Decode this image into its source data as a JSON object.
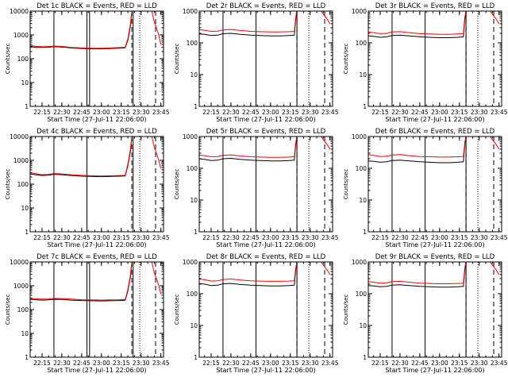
{
  "figure": {
    "colors": {
      "events": "#000000",
      "lld": "#ff0000",
      "axes": "#000000"
    },
    "xlabel": "Start Time (27-Jul-11 22:06:00)",
    "ylabel": "Counts/sec",
    "xtick_labels": [
      "22:15",
      "22:30",
      "22:45",
      "23:00",
      "23:15",
      "23:30",
      "23:45"
    ]
  },
  "chart_data": [
    {
      "type": "line",
      "title": "Det 1c BLACK = Events, RED = LLD",
      "y_scale": "log",
      "ylim": [
        1,
        10000
      ],
      "ytick_labels": [
        "1",
        "10",
        "100",
        "1000",
        "10000"
      ],
      "xlim": [
        "22:06",
        "23:47"
      ],
      "solid_vlines": [
        "22:24",
        "22:49",
        "22:51",
        "23:24"
      ],
      "dashed_vlines": [
        "23:23",
        "23:41"
      ],
      "dotted_vlines": [
        "23:29"
      ],
      "series": [
        {
          "name": "BLACK = Events",
          "color": "#000000",
          "x": [
            "22:06",
            "22:10",
            "22:15",
            "22:20",
            "22:24",
            "22:30",
            "22:37",
            "22:45",
            "22:52",
            "23:00",
            "23:07",
            "23:14",
            "23:18",
            "23:20",
            "23:22",
            "23:23"
          ],
          "y": [
            330,
            300,
            300,
            305,
            320,
            310,
            285,
            270,
            262,
            260,
            270,
            280,
            290,
            600,
            2500,
            9000
          ]
        },
        {
          "name": "RED = LLD",
          "color": "#ff0000",
          "x": [
            "22:06",
            "22:10",
            "22:15",
            "22:20",
            "22:24",
            "22:30",
            "22:37",
            "22:45",
            "22:52",
            "23:00",
            "23:07",
            "23:14",
            "23:18",
            "23:20",
            "23:22",
            "23:23",
            "23:38",
            "23:40",
            "23:43",
            "23:45"
          ],
          "y": [
            360,
            330,
            320,
            325,
            340,
            330,
            300,
            285,
            275,
            275,
            285,
            295,
            305,
            700,
            3000,
            11000,
            11000,
            3500,
            1200,
            400
          ]
        }
      ]
    },
    {
      "type": "line",
      "title": "Det 2r BLACK = Events, RED = LLD",
      "y_scale": "log",
      "ylim": [
        1,
        1000
      ],
      "ytick_labels": [
        "1",
        "10",
        "100",
        "1000"
      ],
      "xlim": [
        "22:06",
        "23:47"
      ],
      "solid_vlines": [
        "22:24",
        "22:49",
        "23:20"
      ],
      "dashed_vlines": [
        "23:20",
        "23:41"
      ],
      "dotted_vlines": [
        "23:29"
      ],
      "series": [
        {
          "name": "BLACK = Events",
          "color": "#000000",
          "x": [
            "22:06",
            "22:10",
            "22:15",
            "22:20",
            "22:24",
            "22:30",
            "22:37",
            "22:45",
            "22:52",
            "23:00",
            "23:07",
            "23:14",
            "23:18",
            "23:19",
            "23:20"
          ],
          "y": [
            190,
            185,
            170,
            175,
            195,
            200,
            185,
            175,
            170,
            165,
            165,
            170,
            175,
            500,
            1100
          ]
        },
        {
          "name": "RED = LLD",
          "color": "#ff0000",
          "x": [
            "22:06",
            "22:10",
            "22:15",
            "22:20",
            "22:24",
            "22:30",
            "22:37",
            "22:45",
            "22:52",
            "23:00",
            "23:07",
            "23:14",
            "23:18",
            "23:19",
            "23:20",
            "23:38",
            "23:40",
            "23:43",
            "23:45"
          ],
          "y": [
            260,
            250,
            230,
            235,
            255,
            265,
            245,
            230,
            225,
            220,
            220,
            225,
            230,
            600,
            1100,
            1100,
            800,
            550,
            400
          ]
        }
      ]
    },
    {
      "type": "line",
      "title": "Det 3r BLACK = Events, RED = LLD",
      "y_scale": "log",
      "ylim": [
        1,
        1000
      ],
      "ytick_labels": [
        "1",
        "10",
        "100",
        "1000"
      ],
      "xlim": [
        "22:06",
        "23:47"
      ],
      "solid_vlines": [
        "22:24",
        "22:49",
        "23:20"
      ],
      "dashed_vlines": [
        "23:20",
        "23:41"
      ],
      "dotted_vlines": [
        "23:29"
      ],
      "series": [
        {
          "name": "BLACK = Events",
          "color": "#000000",
          "x": [
            "22:06",
            "22:10",
            "22:15",
            "22:20",
            "22:24",
            "22:30",
            "22:37",
            "22:45",
            "22:52",
            "23:00",
            "23:07",
            "23:14",
            "23:18",
            "23:19",
            "23:20"
          ],
          "y": [
            165,
            160,
            150,
            155,
            170,
            175,
            165,
            155,
            150,
            145,
            145,
            150,
            155,
            500,
            1100
          ]
        },
        {
          "name": "RED = LLD",
          "color": "#ff0000",
          "x": [
            "22:06",
            "22:10",
            "22:15",
            "22:20",
            "22:24",
            "22:30",
            "22:37",
            "22:45",
            "22:52",
            "23:00",
            "23:07",
            "23:14",
            "23:18",
            "23:19",
            "23:20",
            "23:38",
            "23:40",
            "23:43",
            "23:45"
          ],
          "y": [
            220,
            210,
            195,
            200,
            220,
            225,
            210,
            195,
            190,
            185,
            185,
            190,
            195,
            600,
            1100,
            1100,
            800,
            550,
            400
          ]
        }
      ]
    },
    {
      "type": "line",
      "title": "Det 4c BLACK = Events, RED = LLD",
      "y_scale": "log",
      "ylim": [
        1,
        10000
      ],
      "ytick_labels": [
        "1",
        "10",
        "100",
        "1000",
        "10000"
      ],
      "xlim": [
        "22:06",
        "23:47"
      ],
      "solid_vlines": [
        "22:24",
        "22:49",
        "23:24"
      ],
      "dashed_vlines": [
        "23:23",
        "23:41"
      ],
      "dotted_vlines": [
        "23:29"
      ],
      "series": [
        {
          "name": "BLACK = Events",
          "color": "#000000",
          "x": [
            "22:06",
            "22:10",
            "22:15",
            "22:20",
            "22:24",
            "22:30",
            "22:37",
            "22:45",
            "22:52",
            "23:00",
            "23:07",
            "23:14",
            "23:18",
            "23:20",
            "23:22",
            "23:23"
          ],
          "y": [
            270,
            250,
            230,
            240,
            260,
            250,
            230,
            215,
            210,
            205,
            210,
            215,
            220,
            600,
            2500,
            9000
          ]
        },
        {
          "name": "RED = LLD",
          "color": "#ff0000",
          "x": [
            "22:06",
            "22:10",
            "22:15",
            "22:20",
            "22:24",
            "22:30",
            "22:37",
            "22:45",
            "22:52",
            "23:00",
            "23:07",
            "23:14",
            "23:18",
            "23:20",
            "23:22",
            "23:23",
            "23:38",
            "23:40",
            "23:43",
            "23:45"
          ],
          "y": [
            300,
            275,
            250,
            260,
            280,
            270,
            250,
            235,
            225,
            220,
            225,
            230,
            235,
            700,
            3000,
            11000,
            11000,
            3500,
            1200,
            450
          ]
        }
      ]
    },
    {
      "type": "line",
      "title": "Det 5r BLACK = Events, RED = LLD",
      "y_scale": "log",
      "ylim": [
        1,
        1000
      ],
      "ytick_labels": [
        "1",
        "10",
        "100",
        "1000"
      ],
      "xlim": [
        "22:06",
        "23:47"
      ],
      "solid_vlines": [
        "22:24",
        "22:49",
        "23:20"
      ],
      "dashed_vlines": [
        "23:20",
        "23:41"
      ],
      "dotted_vlines": [
        "23:29"
      ],
      "series": [
        {
          "name": "BLACK = Events",
          "color": "#000000",
          "x": [
            "22:06",
            "22:10",
            "22:15",
            "22:20",
            "22:24",
            "22:30",
            "22:37",
            "22:45",
            "22:52",
            "23:00",
            "23:07",
            "23:14",
            "23:18",
            "23:19",
            "23:20"
          ],
          "y": [
            200,
            190,
            175,
            180,
            200,
            205,
            190,
            180,
            175,
            170,
            170,
            175,
            180,
            500,
            1100
          ]
        },
        {
          "name": "RED = LLD",
          "color": "#ff0000",
          "x": [
            "22:06",
            "22:10",
            "22:15",
            "22:20",
            "22:24",
            "22:30",
            "22:37",
            "22:45",
            "22:52",
            "23:00",
            "23:07",
            "23:14",
            "23:18",
            "23:19",
            "23:20",
            "23:38",
            "23:40",
            "23:43",
            "23:45"
          ],
          "y": [
            260,
            250,
            230,
            235,
            255,
            265,
            245,
            230,
            225,
            220,
            220,
            225,
            230,
            600,
            1100,
            1100,
            800,
            550,
            400
          ]
        }
      ]
    },
    {
      "type": "line",
      "title": "Det 6r BLACK = Events, RED = LLD",
      "y_scale": "log",
      "ylim": [
        1,
        1000
      ],
      "ytick_labels": [
        "1",
        "10",
        "100",
        "1000"
      ],
      "xlim": [
        "22:06",
        "23:47"
      ],
      "solid_vlines": [
        "22:24",
        "22:49",
        "23:20"
      ],
      "dashed_vlines": [
        "23:20",
        "23:41"
      ],
      "dotted_vlines": [
        "23:29"
      ],
      "series": [
        {
          "name": "BLACK = Events",
          "color": "#000000",
          "x": [
            "22:06",
            "22:10",
            "22:15",
            "22:20",
            "22:24",
            "22:30",
            "22:37",
            "22:45",
            "22:52",
            "23:00",
            "23:07",
            "23:14",
            "23:18",
            "23:19",
            "23:20"
          ],
          "y": [
            170,
            165,
            155,
            160,
            175,
            180,
            170,
            160,
            155,
            150,
            150,
            155,
            160,
            500,
            1100
          ]
        },
        {
          "name": "RED = LLD",
          "color": "#ff0000",
          "x": [
            "22:06",
            "22:10",
            "22:15",
            "22:20",
            "22:24",
            "22:30",
            "22:37",
            "22:45",
            "22:52",
            "23:00",
            "23:07",
            "23:14",
            "23:18",
            "23:19",
            "23:20",
            "23:38",
            "23:40",
            "23:43",
            "23:45"
          ],
          "y": [
            270,
            255,
            235,
            240,
            260,
            270,
            250,
            235,
            230,
            225,
            225,
            230,
            235,
            600,
            1100,
            1100,
            800,
            550,
            400
          ]
        }
      ]
    },
    {
      "type": "line",
      "title": "Det 7c BLACK = Events, RED = LLD",
      "y_scale": "log",
      "ylim": [
        1,
        10000
      ],
      "ytick_labels": [
        "1",
        "10",
        "100",
        "1000",
        "10000"
      ],
      "xlim": [
        "22:06",
        "23:47"
      ],
      "solid_vlines": [
        "22:24",
        "22:49",
        "22:51",
        "23:24"
      ],
      "dashed_vlines": [
        "23:23",
        "23:41"
      ],
      "dotted_vlines": [
        "23:29"
      ],
      "series": [
        {
          "name": "BLACK = Events",
          "color": "#000000",
          "x": [
            "22:06",
            "22:10",
            "22:15",
            "22:20",
            "22:24",
            "22:30",
            "22:37",
            "22:45",
            "22:52",
            "23:00",
            "23:07",
            "23:14",
            "23:18",
            "23:20",
            "23:22",
            "23:23"
          ],
          "y": [
            270,
            260,
            250,
            255,
            270,
            265,
            250,
            240,
            235,
            230,
            235,
            240,
            245,
            600,
            2500,
            9000
          ]
        },
        {
          "name": "RED = LLD",
          "color": "#ff0000",
          "x": [
            "22:06",
            "22:10",
            "22:15",
            "22:20",
            "22:24",
            "22:30",
            "22:37",
            "22:45",
            "22:52",
            "23:00",
            "23:07",
            "23:14",
            "23:18",
            "23:20",
            "23:22",
            "23:23",
            "23:38",
            "23:40",
            "23:43",
            "23:45"
          ],
          "y": [
            300,
            285,
            275,
            280,
            295,
            290,
            275,
            260,
            255,
            250,
            255,
            260,
            265,
            700,
            3000,
            11000,
            11000,
            3500,
            1200,
            450
          ]
        }
      ]
    },
    {
      "type": "line",
      "title": "Det 8r BLACK = Events, RED = LLD",
      "y_scale": "log",
      "ylim": [
        1,
        1000
      ],
      "ytick_labels": [
        "1",
        "10",
        "100",
        "1000"
      ],
      "xlim": [
        "22:06",
        "23:47"
      ],
      "solid_vlines": [
        "22:24",
        "22:49",
        "23:20"
      ],
      "dashed_vlines": [
        "23:20",
        "23:41"
      ],
      "dotted_vlines": [
        "23:29"
      ],
      "series": [
        {
          "name": "BLACK = Events",
          "color": "#000000",
          "x": [
            "22:06",
            "22:10",
            "22:15",
            "22:20",
            "22:24",
            "22:30",
            "22:37",
            "22:45",
            "22:52",
            "23:00",
            "23:07",
            "23:14",
            "23:18",
            "23:19",
            "23:20"
          ],
          "y": [
            210,
            200,
            180,
            185,
            205,
            210,
            195,
            185,
            180,
            175,
            175,
            180,
            185,
            500,
            1100
          ]
        },
        {
          "name": "RED = LLD",
          "color": "#ff0000",
          "x": [
            "22:06",
            "22:10",
            "22:15",
            "22:20",
            "22:24",
            "22:30",
            "22:37",
            "22:45",
            "22:52",
            "23:00",
            "23:07",
            "23:14",
            "23:18",
            "23:19",
            "23:20",
            "23:38",
            "23:40",
            "23:43",
            "23:45"
          ],
          "y": [
            290,
            275,
            250,
            255,
            280,
            290,
            270,
            255,
            250,
            245,
            245,
            250,
            255,
            600,
            1100,
            1100,
            800,
            550,
            400
          ]
        }
      ]
    },
    {
      "type": "line",
      "title": "Det 9r BLACK = Events, RED = LLD",
      "y_scale": "log",
      "ylim": [
        1,
        1000
      ],
      "ytick_labels": [
        "1",
        "10",
        "100",
        "1000"
      ],
      "xlim": [
        "22:06",
        "23:47"
      ],
      "solid_vlines": [
        "22:24",
        "22:49",
        "23:20"
      ],
      "dashed_vlines": [
        "23:20",
        "23:41"
      ],
      "dotted_vlines": [
        "23:29"
      ],
      "series": [
        {
          "name": "BLACK = Events",
          "color": "#000000",
          "x": [
            "22:06",
            "22:10",
            "22:15",
            "22:20",
            "22:24",
            "22:30",
            "22:37",
            "22:45",
            "22:52",
            "23:00",
            "23:07",
            "23:14",
            "23:18",
            "23:19",
            "23:20"
          ],
          "y": [
            180,
            175,
            165,
            170,
            185,
            190,
            180,
            170,
            165,
            160,
            160,
            165,
            170,
            500,
            1100
          ]
        },
        {
          "name": "RED = LLD",
          "color": "#ff0000",
          "x": [
            "22:06",
            "22:10",
            "22:15",
            "22:20",
            "22:24",
            "22:30",
            "22:37",
            "22:45",
            "22:52",
            "23:00",
            "23:07",
            "23:14",
            "23:18",
            "23:19",
            "23:20",
            "23:38",
            "23:40",
            "23:43",
            "23:45"
          ],
          "y": [
            240,
            230,
            215,
            220,
            240,
            245,
            230,
            215,
            210,
            205,
            205,
            210,
            215,
            600,
            1100,
            1100,
            800,
            550,
            400
          ]
        }
      ]
    }
  ]
}
